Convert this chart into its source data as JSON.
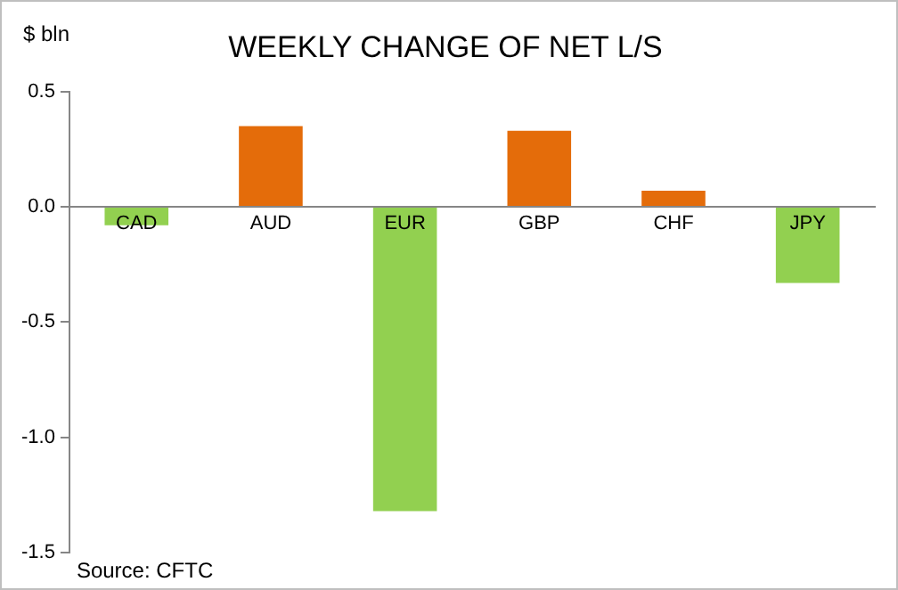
{
  "chart_data": {
    "type": "bar",
    "title": "WEEKLY CHANGE OF NET L/S",
    "ylabel": "$ bln",
    "categories": [
      "CAD",
      "AUD",
      "EUR",
      "GBP",
      "CHF",
      "JPY"
    ],
    "values": [
      -0.08,
      0.35,
      -1.32,
      0.33,
      0.07,
      -0.33
    ],
    "colors": [
      "#92d050",
      "#e46c0a",
      "#92d050",
      "#e46c0a",
      "#e46c0a",
      "#92d050"
    ],
    "ylim": [
      -1.5,
      0.5
    ],
    "yticks": [
      {
        "value": -1.5,
        "label": "-1.5"
      },
      {
        "value": -1,
        "label": "-1.0"
      },
      {
        "value": -0.5,
        "label": "-0.5"
      },
      {
        "value": 0,
        "label": "0.0"
      },
      0.5
    ],
    "annotations": [
      "Source: CFTC"
    ],
    "grid": false,
    "legend": false
  }
}
